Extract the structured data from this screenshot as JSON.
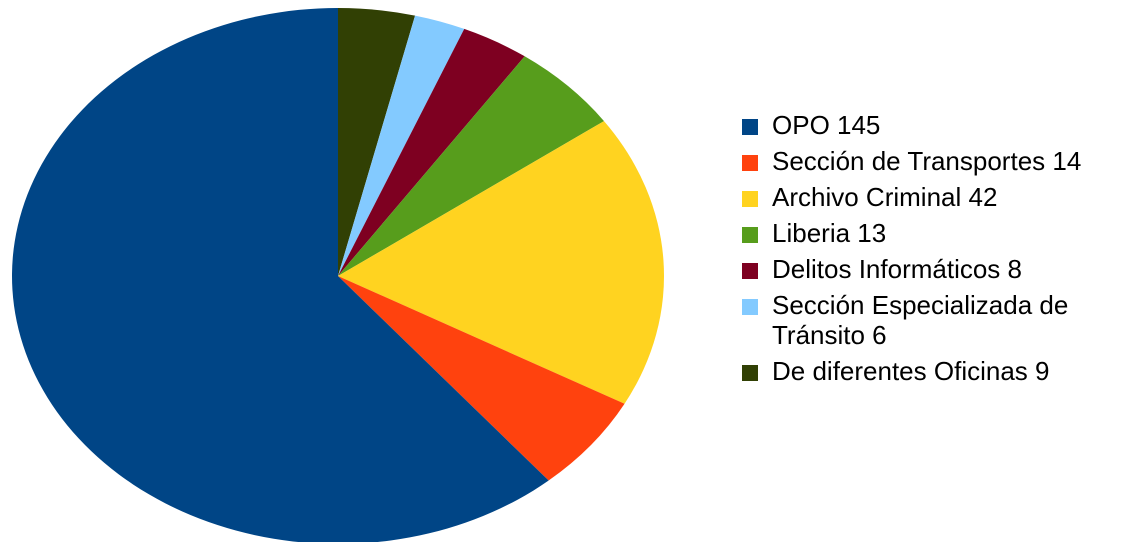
{
  "chart_data": {
    "type": "pie",
    "title": "",
    "legend_position": "right",
    "start_angle": "top, clockwise",
    "slices": [
      {
        "label": "OPO 145",
        "value": 145,
        "color": "#004586"
      },
      {
        "label": "Sección de Transportes 14",
        "value": 14,
        "color": "#ff420e"
      },
      {
        "label": "Archivo Criminal 42",
        "value": 42,
        "color": "#ffd320"
      },
      {
        "label": "Liberia 13",
        "value": 13,
        "color": "#579d1c"
      },
      {
        "label": "Delitos Informáticos 8",
        "value": 8,
        "color": "#7e0021"
      },
      {
        "label": "Sección Especializada de Tránsito 6",
        "value": 6,
        "color": "#83caff"
      },
      {
        "label": "De diferentes Oficinas 9",
        "value": 9,
        "color": "#314004"
      }
    ],
    "draw_order": [
      6,
      5,
      4,
      3,
      2,
      1,
      0
    ]
  }
}
